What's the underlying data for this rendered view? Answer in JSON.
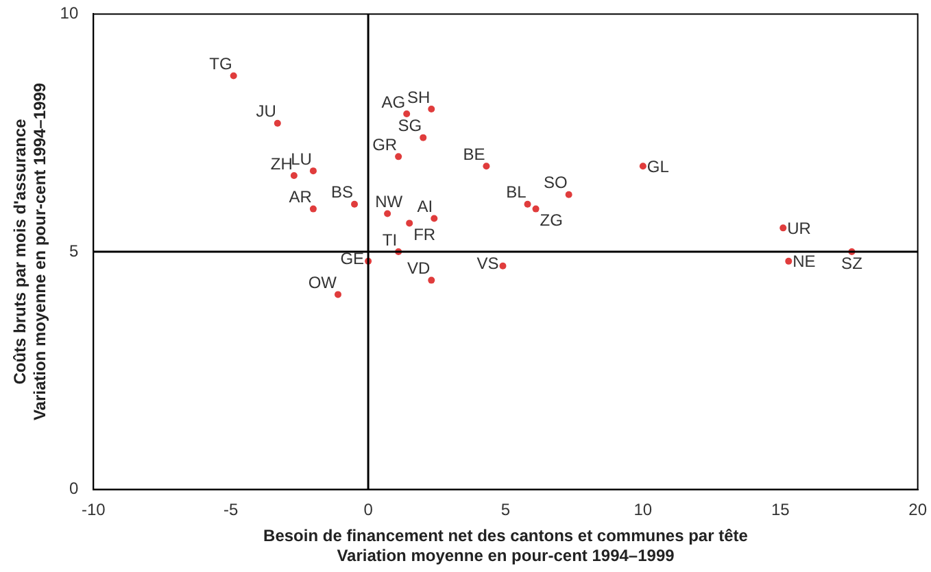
{
  "chart_data": {
    "type": "scatter",
    "xlabel": "Besoin de financement net des cantons et communes par tête\nVariation moyenne en pour-cent 1994–1999",
    "ylabel": "Coûts bruts par mois d'assurance\nVariation moyenne en pour-cent 1994–1999",
    "x": [
      -4.9,
      -3.3,
      -2.7,
      -2.0,
      -2.0,
      -0.5,
      0.0,
      -1.1,
      1.4,
      2.3,
      2.0,
      1.1,
      4.3,
      0.7,
      2.4,
      1.5,
      1.1,
      2.3,
      4.9,
      5.8,
      6.1,
      7.3,
      10.0,
      15.1,
      15.3,
      17.6
    ],
    "series": [
      {
        "color": "#e03c3c",
        "values": [
          8.7,
          7.7,
          6.6,
          6.7,
          5.9,
          6.0,
          4.8,
          4.1,
          7.9,
          8.0,
          7.4,
          7.0,
          6.8,
          5.8,
          5.7,
          5.6,
          5.0,
          4.4,
          4.7,
          6.0,
          5.9,
          6.2,
          6.8,
          5.5,
          4.8,
          5.0
        ]
      }
    ],
    "xlim": [
      -10,
      20
    ],
    "xticks": [
      -10,
      -5,
      0,
      5,
      10,
      15,
      20
    ],
    "ylim": [
      0,
      10
    ],
    "yticks": [
      0,
      5,
      10
    ],
    "grid": false,
    "legend": false,
    "marker": "circle",
    "ref_lines": [
      {
        "axis": "x",
        "value": 0,
        "color": "#000000"
      },
      {
        "axis": "y",
        "value": 5,
        "color": "#000000"
      }
    ],
    "annotations": [
      {
        "text": "TG",
        "x": -4.9,
        "y": 8.7
      },
      {
        "text": "JU",
        "x": -3.3,
        "y": 7.7
      },
      {
        "text": "ZH",
        "x": -2.7,
        "y": 6.6
      },
      {
        "text": "LU",
        "x": -2.0,
        "y": 6.7
      },
      {
        "text": "AR",
        "x": -2.0,
        "y": 5.9
      },
      {
        "text": "BS",
        "x": -0.5,
        "y": 6.0
      },
      {
        "text": "GE",
        "x": 0.0,
        "y": 4.8
      },
      {
        "text": "OW",
        "x": -1.1,
        "y": 4.1
      },
      {
        "text": "AG",
        "x": 1.4,
        "y": 7.9
      },
      {
        "text": "SH",
        "x": 2.3,
        "y": 8.0
      },
      {
        "text": "SG",
        "x": 2.0,
        "y": 7.4
      },
      {
        "text": "GR",
        "x": 1.1,
        "y": 7.0
      },
      {
        "text": "BE",
        "x": 4.3,
        "y": 6.8
      },
      {
        "text": "NW",
        "x": 0.7,
        "y": 5.8
      },
      {
        "text": "AI",
        "x": 2.4,
        "y": 5.7
      },
      {
        "text": "FR",
        "x": 1.5,
        "y": 5.6
      },
      {
        "text": "TI",
        "x": 1.1,
        "y": 5.0
      },
      {
        "text": "VD",
        "x": 2.3,
        "y": 4.4
      },
      {
        "text": "VS",
        "x": 4.9,
        "y": 4.7
      },
      {
        "text": "BL",
        "x": 5.8,
        "y": 6.0
      },
      {
        "text": "ZG",
        "x": 6.1,
        "y": 5.9
      },
      {
        "text": "SO",
        "x": 7.3,
        "y": 6.2
      },
      {
        "text": "GL",
        "x": 10.0,
        "y": 6.8
      },
      {
        "text": "UR",
        "x": 15.1,
        "y": 5.5
      },
      {
        "text": "NE",
        "x": 15.3,
        "y": 4.8
      },
      {
        "text": "SZ",
        "x": 17.6,
        "y": 5.0
      }
    ]
  }
}
